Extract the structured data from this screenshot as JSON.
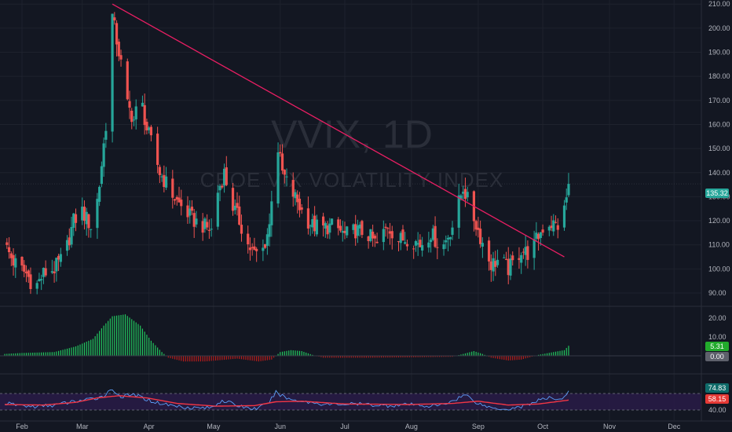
{
  "watermark": {
    "symbol": "VVIX, 1D",
    "name": "CBOE VIX VOLATILITY INDEX"
  },
  "colors": {
    "background": "#131722",
    "up": "#26a69a",
    "down": "#ef5350",
    "trendline": "#e91e63",
    "grid": "#1e222d",
    "macd_up": "#22c55e",
    "macd_down": "#b71c1c",
    "rsi_line": "#5b9cf6",
    "rsi_ma": "#f23645",
    "rsi_band": "#2a1b4a"
  },
  "x_axis": {
    "ticks": [
      {
        "label": "Feb",
        "day": 0
      },
      {
        "label": "Mar",
        "day": 28
      },
      {
        "label": "Apr",
        "day": 59
      },
      {
        "label": "May",
        "day": 89
      },
      {
        "label": "Jun",
        "day": 120
      },
      {
        "label": "Jul",
        "day": 150
      },
      {
        "label": "Aug",
        "day": 181
      },
      {
        "label": "Sep",
        "day": 212
      },
      {
        "label": "Oct",
        "day": 242
      },
      {
        "label": "Nov",
        "day": 273
      },
      {
        "label": "Dec",
        "day": 303
      }
    ]
  },
  "badges": {
    "price": "135.32",
    "macd_pos": "5.31",
    "macd_zero": "0.00",
    "rsi": "74.83",
    "rsi_ma": "58.15"
  },
  "chart_data": [
    {
      "type": "candlestick",
      "title": "VVIX, 1D",
      "subtitle": "CBOE VIX VOLATILITY INDEX",
      "ylim": [
        85,
        222
      ],
      "y_ticks": [
        90,
        100,
        110,
        120,
        130,
        140,
        150,
        160,
        170,
        180,
        190,
        200,
        210,
        220
      ],
      "last_price": 135.32,
      "trendline": {
        "start": {
          "day": 42,
          "value": 210
        },
        "end": {
          "day": 252,
          "value": 105
        }
      },
      "anchors": [
        {
          "day": -8,
          "value": 110
        },
        {
          "day": -4,
          "value": 103
        },
        {
          "day": 2,
          "value": 98
        },
        {
          "day": 6,
          "value": 92
        },
        {
          "day": 10,
          "value": 98
        },
        {
          "day": 15,
          "value": 100
        },
        {
          "day": 20,
          "value": 106
        },
        {
          "day": 24,
          "value": 120
        },
        {
          "day": 28,
          "value": 124
        },
        {
          "day": 33,
          "value": 116
        },
        {
          "day": 36,
          "value": 135
        },
        {
          "day": 39,
          "value": 160
        },
        {
          "day": 42,
          "value": 205
        },
        {
          "day": 46,
          "value": 185
        },
        {
          "day": 49,
          "value": 168
        },
        {
          "day": 52,
          "value": 162
        },
        {
          "day": 55,
          "value": 172
        },
        {
          "day": 58,
          "value": 158
        },
        {
          "day": 61,
          "value": 150
        },
        {
          "day": 64,
          "value": 140
        },
        {
          "day": 68,
          "value": 134
        },
        {
          "day": 72,
          "value": 128
        },
        {
          "day": 76,
          "value": 124
        },
        {
          "day": 80,
          "value": 120
        },
        {
          "day": 84,
          "value": 118
        },
        {
          "day": 88,
          "value": 116
        },
        {
          "day": 91,
          "value": 132
        },
        {
          "day": 94,
          "value": 140
        },
        {
          "day": 97,
          "value": 128
        },
        {
          "day": 101,
          "value": 120
        },
        {
          "day": 105,
          "value": 110
        },
        {
          "day": 108,
          "value": 106
        },
        {
          "day": 112,
          "value": 108
        },
        {
          "day": 115,
          "value": 118
        },
        {
          "day": 118,
          "value": 155
        },
        {
          "day": 121,
          "value": 140
        },
        {
          "day": 124,
          "value": 134
        },
        {
          "day": 128,
          "value": 128
        },
        {
          "day": 131,
          "value": 122
        },
        {
          "day": 135,
          "value": 118
        },
        {
          "day": 140,
          "value": 117
        },
        {
          "day": 145,
          "value": 118
        },
        {
          "day": 150,
          "value": 114
        },
        {
          "day": 155,
          "value": 116
        },
        {
          "day": 160,
          "value": 115
        },
        {
          "day": 165,
          "value": 110
        },
        {
          "day": 170,
          "value": 118
        },
        {
          "day": 175,
          "value": 112
        },
        {
          "day": 180,
          "value": 113
        },
        {
          "day": 185,
          "value": 110
        },
        {
          "day": 190,
          "value": 115
        },
        {
          "day": 195,
          "value": 108
        },
        {
          "day": 200,
          "value": 118
        },
        {
          "day": 205,
          "value": 134
        },
        {
          "day": 208,
          "value": 126
        },
        {
          "day": 212,
          "value": 116
        },
        {
          "day": 215,
          "value": 108
        },
        {
          "day": 218,
          "value": 102
        },
        {
          "day": 222,
          "value": 104
        },
        {
          "day": 226,
          "value": 100
        },
        {
          "day": 229,
          "value": 103
        },
        {
          "day": 232,
          "value": 108
        },
        {
          "day": 236,
          "value": 106
        },
        {
          "day": 239,
          "value": 112
        },
        {
          "day": 242,
          "value": 117
        },
        {
          "day": 245,
          "value": 119
        },
        {
          "day": 249,
          "value": 118
        },
        {
          "day": 251,
          "value": 119
        },
        {
          "day": 254,
          "value": 135
        }
      ]
    },
    {
      "type": "bar",
      "title": "",
      "ylim": [
        -3,
        24
      ],
      "y_ticks": [
        0,
        10,
        20
      ],
      "last_value": 5.31,
      "anchors": [
        {
          "day": -8,
          "value": 1
        },
        {
          "day": 0,
          "value": 1.5
        },
        {
          "day": 15,
          "value": 2
        },
        {
          "day": 25,
          "value": 5
        },
        {
          "day": 33,
          "value": 9
        },
        {
          "day": 38,
          "value": 16
        },
        {
          "day": 42,
          "value": 21
        },
        {
          "day": 48,
          "value": 22
        },
        {
          "day": 55,
          "value": 16
        },
        {
          "day": 60,
          "value": 8
        },
        {
          "day": 65,
          "value": 2
        },
        {
          "day": 68,
          "value": -1
        },
        {
          "day": 75,
          "value": -3
        },
        {
          "day": 85,
          "value": -3
        },
        {
          "day": 95,
          "value": -2
        },
        {
          "day": 100,
          "value": -1.5
        },
        {
          "day": 110,
          "value": -3
        },
        {
          "day": 116,
          "value": -2
        },
        {
          "day": 120,
          "value": 2
        },
        {
          "day": 125,
          "value": 3
        },
        {
          "day": 130,
          "value": 2.5
        },
        {
          "day": 135,
          "value": 0.5
        },
        {
          "day": 140,
          "value": -1
        },
        {
          "day": 160,
          "value": -1
        },
        {
          "day": 180,
          "value": -0.8
        },
        {
          "day": 200,
          "value": -0.5
        },
        {
          "day": 205,
          "value": 1
        },
        {
          "day": 210,
          "value": 2.5
        },
        {
          "day": 214,
          "value": 1
        },
        {
          "day": 218,
          "value": -1
        },
        {
          "day": 226,
          "value": -2.5
        },
        {
          "day": 232,
          "value": -2
        },
        {
          "day": 240,
          "value": 0.5
        },
        {
          "day": 247,
          "value": 2
        },
        {
          "day": 252,
          "value": 3
        },
        {
          "day": 254,
          "value": 5.31
        }
      ]
    },
    {
      "type": "line",
      "title": "",
      "ylim": [
        35,
        90
      ],
      "y_ticks": [
        40,
        60,
        80
      ],
      "band": [
        40,
        70
      ],
      "series": [
        {
          "name": "",
          "last_value": 74.83,
          "anchors": [
            {
              "day": -8,
              "value": 52
            },
            {
              "day": 5,
              "value": 46
            },
            {
              "day": 15,
              "value": 49
            },
            {
              "day": 25,
              "value": 56
            },
            {
              "day": 33,
              "value": 60
            },
            {
              "day": 38,
              "value": 66
            },
            {
              "day": 42,
              "value": 78
            },
            {
              "day": 46,
              "value": 64
            },
            {
              "day": 52,
              "value": 68
            },
            {
              "day": 56,
              "value": 62
            },
            {
              "day": 62,
              "value": 54
            },
            {
              "day": 70,
              "value": 48
            },
            {
              "day": 80,
              "value": 44
            },
            {
              "day": 88,
              "value": 44
            },
            {
              "day": 93,
              "value": 58
            },
            {
              "day": 100,
              "value": 48
            },
            {
              "day": 108,
              "value": 42
            },
            {
              "day": 114,
              "value": 50
            },
            {
              "day": 118,
              "value": 72
            },
            {
              "day": 124,
              "value": 60
            },
            {
              "day": 132,
              "value": 55
            },
            {
              "day": 142,
              "value": 50
            },
            {
              "day": 155,
              "value": 51
            },
            {
              "day": 170,
              "value": 48
            },
            {
              "day": 180,
              "value": 50
            },
            {
              "day": 190,
              "value": 47
            },
            {
              "day": 196,
              "value": 50
            },
            {
              "day": 200,
              "value": 57
            },
            {
              "day": 206,
              "value": 68
            },
            {
              "day": 212,
              "value": 52
            },
            {
              "day": 218,
              "value": 44
            },
            {
              "day": 226,
              "value": 42
            },
            {
              "day": 234,
              "value": 48
            },
            {
              "day": 240,
              "value": 58
            },
            {
              "day": 246,
              "value": 62
            },
            {
              "day": 251,
              "value": 60
            },
            {
              "day": 254,
              "value": 75
            }
          ]
        },
        {
          "name": "",
          "last_value": 58.15,
          "anchors": [
            {
              "day": -8,
              "value": 50
            },
            {
              "day": 10,
              "value": 49
            },
            {
              "day": 25,
              "value": 54
            },
            {
              "day": 35,
              "value": 62
            },
            {
              "day": 45,
              "value": 66
            },
            {
              "day": 58,
              "value": 62
            },
            {
              "day": 72,
              "value": 52
            },
            {
              "day": 90,
              "value": 47
            },
            {
              "day": 108,
              "value": 48
            },
            {
              "day": 118,
              "value": 55
            },
            {
              "day": 130,
              "value": 56
            },
            {
              "day": 150,
              "value": 51
            },
            {
              "day": 180,
              "value": 50
            },
            {
              "day": 200,
              "value": 52
            },
            {
              "day": 212,
              "value": 56
            },
            {
              "day": 226,
              "value": 49
            },
            {
              "day": 240,
              "value": 51
            },
            {
              "day": 254,
              "value": 58
            }
          ]
        }
      ]
    }
  ]
}
